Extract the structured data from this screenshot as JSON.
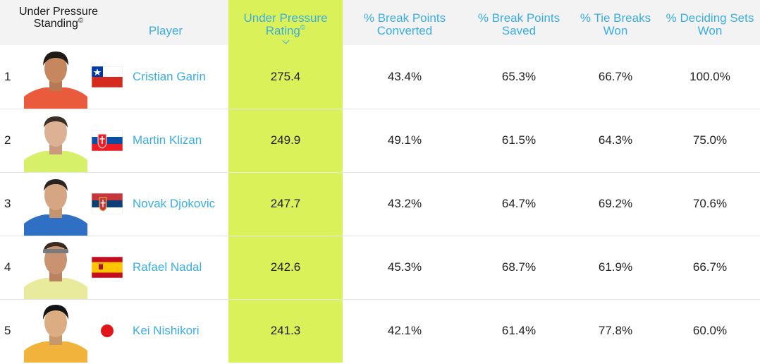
{
  "header": {
    "standing_label": "Under Pressure Standing",
    "standing_mark": "©",
    "player_label": "Player",
    "rating_label": "Under Pressure Rating",
    "rating_mark": "©",
    "break_converted_label": "% Break Points Converted",
    "break_saved_label": "% Break Points Saved",
    "tie_breaks_label": "% Tie Breaks Won",
    "deciding_sets_label": "% Deciding Sets Won"
  },
  "colors": {
    "link": "#3aaee3",
    "rating_highlight": "#dbf159",
    "header_bg": "#f3f3f3",
    "row_border": "#e4e4e4"
  },
  "players": [
    {
      "rank": "1",
      "name": "Cristian Garin",
      "flag": "chile-flag",
      "rating": "275.4",
      "break_converted": "43.4%",
      "break_saved": "65.3%",
      "tie_breaks": "66.7%",
      "deciding_sets": "100.0%"
    },
    {
      "rank": "2",
      "name": "Martin Klizan",
      "flag": "slovakia-flag",
      "rating": "249.9",
      "break_converted": "49.1%",
      "break_saved": "61.5%",
      "tie_breaks": "64.3%",
      "deciding_sets": "75.0%"
    },
    {
      "rank": "3",
      "name": "Novak Djokovic",
      "flag": "serbia-flag",
      "rating": "247.7",
      "break_converted": "43.2%",
      "break_saved": "64.7%",
      "tie_breaks": "69.2%",
      "deciding_sets": "70.6%"
    },
    {
      "rank": "4",
      "name": "Rafael Nadal",
      "flag": "spain-flag",
      "rating": "242.6",
      "break_converted": "45.3%",
      "break_saved": "68.7%",
      "tie_breaks": "61.9%",
      "deciding_sets": "66.7%"
    },
    {
      "rank": "5",
      "name": "Kei Nishikori",
      "flag": "japan-flag",
      "rating": "241.3",
      "break_converted": "42.1%",
      "break_saved": "61.4%",
      "tie_breaks": "77.8%",
      "deciding_sets": "60.0%"
    }
  ]
}
